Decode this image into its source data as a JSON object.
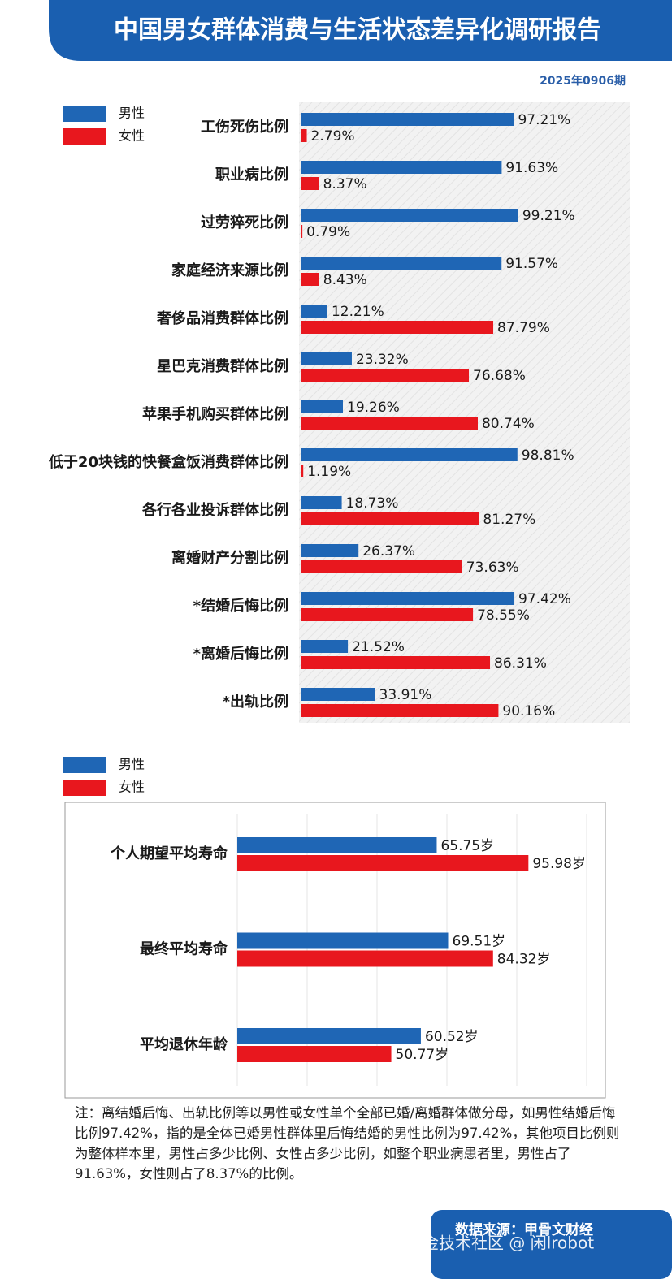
{
  "header": {
    "title": "中国男女群体消费与生活状态差异化调研报告",
    "issue": "2025年0906期"
  },
  "chart_data": [
    {
      "type": "bar",
      "orientation": "horizontal",
      "categories": [
        "工伤死伤比例",
        "职业病比例",
        "过劳猝死比例",
        "家庭经济来源比例",
        "奢侈品消费群体比例",
        "星巴克消费群体比例",
        "苹果手机购买群体比例",
        "低于20块钱的快餐盒饭消费群体比例",
        "各行各业投诉群体比例",
        "离婚财产分割比例",
        "*结婚后悔比例",
        "*离婚后悔比例",
        "*出轨比例"
      ],
      "series": [
        {
          "name": "男性",
          "color": "#1f66b5",
          "values": [
            97.21,
            91.63,
            99.21,
            91.57,
            12.21,
            23.32,
            19.26,
            98.81,
            18.73,
            26.37,
            97.42,
            21.52,
            33.91
          ],
          "value_labels": [
            "97.21%",
            "91.63%",
            "99.21%",
            "91.57%",
            "12.21%",
            "23.32%",
            "19.26%",
            "98.81%",
            "18.73%",
            "26.37%",
            "97.42%",
            "21.52%",
            "33.91%"
          ]
        },
        {
          "name": "女性",
          "color": "#e8171e",
          "values": [
            2.79,
            8.37,
            0.79,
            8.43,
            87.79,
            76.68,
            80.74,
            1.19,
            81.27,
            73.63,
            78.55,
            86.31,
            90.16
          ],
          "value_labels": [
            "2.79%",
            "8.37%",
            "0.79%",
            "8.43%",
            "87.79%",
            "76.68%",
            "80.74%",
            "1.19%",
            "81.27%",
            "73.63%",
            "78.55%",
            "86.31%",
            "90.16%"
          ]
        }
      ],
      "xlim": [
        0,
        150
      ],
      "legend": "top-left"
    },
    {
      "type": "bar",
      "orientation": "horizontal",
      "categories": [
        "个人期望平均寿命",
        "最终平均寿命",
        "平均退休年龄"
      ],
      "series": [
        {
          "name": "男性",
          "color": "#1f66b5",
          "values": [
            65.75,
            69.51,
            60.52
          ],
          "value_labels": [
            "65.75岁",
            "69.51岁",
            "60.52岁"
          ]
        },
        {
          "name": "女性",
          "color": "#e8171e",
          "values": [
            95.98,
            84.32,
            50.77
          ],
          "value_labels": [
            "95.98岁",
            "84.32岁",
            "50.77岁"
          ]
        }
      ],
      "xlim": [
        0,
        120
      ],
      "legend": "top-left"
    }
  ],
  "note": "注：离结婚后悔、出轨比例等以男性或女性单个全部已婚/离婚群体做分母，如男性结婚后悔比例97.42%，指的是全体已婚男性群体里后悔结婚的男性比例为97.42%，其他项目比例则为整体样本里，男性占多少比例、女性占多少比例，如整个职业病患者里，男性占了91.63%，女性则占了8.37%的比例。",
  "footer": {
    "source": "数据来源：甲骨文财经"
  },
  "watermark": "掘金技术社区 @ 闲lrobot"
}
